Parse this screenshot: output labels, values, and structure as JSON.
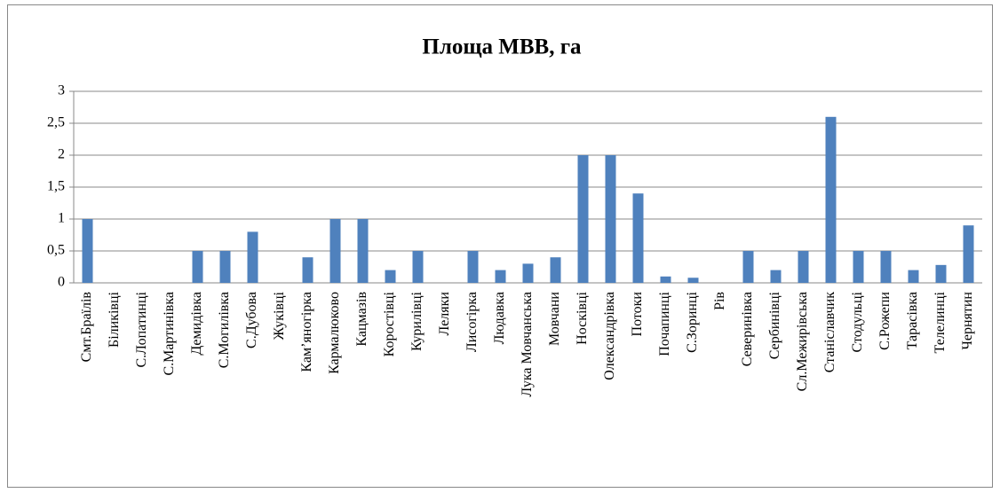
{
  "chart_data": {
    "type": "bar",
    "title": "Площа МВВ, га",
    "categories": [
      "Смт.Браїлів",
      "Біликівці",
      "С.Лопатинці",
      "С.Мартинівка",
      "Демидівка",
      "С.Могилівка",
      "С.Дубова",
      "Жуківці",
      "Кам’яногірка",
      "Кармалюково",
      "Кацмазів",
      "Коростівці",
      "Курилівці",
      "Леляки",
      "Лисогірка",
      "Людавка",
      "Лука Мовчанська",
      "Мовчани",
      "Носківці",
      "Олександрівка",
      "Потоки",
      "Почапинці",
      "С.Зоринці",
      "Рів",
      "Северинівка",
      "Сербинівці",
      "Сл.Межирівська",
      "Станіславчик",
      "Стодульці",
      "С.Рожепи",
      "Тарасівка",
      "Телелинці",
      "Чернятин"
    ],
    "values": [
      1,
      0,
      0,
      0,
      0.5,
      0.5,
      0.8,
      0,
      0.4,
      1,
      1,
      0.2,
      0.5,
      0,
      0.5,
      0.2,
      0.3,
      0.4,
      2,
      2,
      1.4,
      0.1,
      0.08,
      0,
      0.5,
      0.2,
      0.5,
      2.6,
      0.5,
      0.5,
      0.2,
      0.28,
      0.9
    ],
    "color": "#4f81bd",
    "ylim": [
      0,
      3
    ],
    "yticks": [
      0,
      {
        "value": 0.5,
        "label": "0,5"
      },
      1,
      {
        "value": 1.5,
        "label": "1,5"
      },
      2,
      {
        "value": 2.5,
        "label": "2,5"
      },
      3
    ],
    "grid": true
  }
}
